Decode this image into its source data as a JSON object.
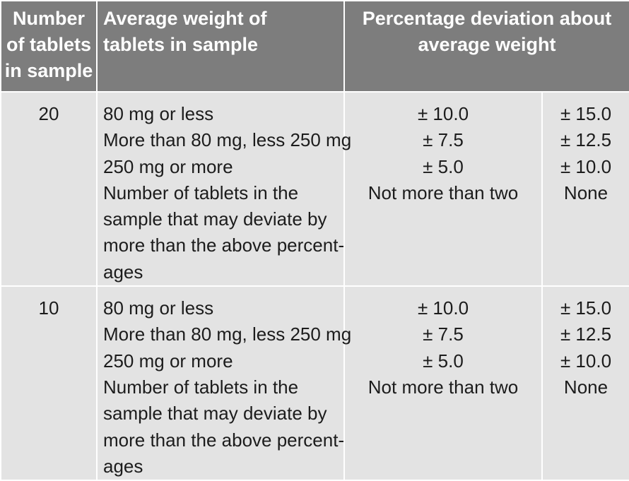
{
  "header": {
    "col1": [
      "Number",
      "of tablets",
      "in sample"
    ],
    "col2": [
      "Average weight of",
      "tablets in sample"
    ],
    "col3": [
      "Percentage deviation about",
      "average weight"
    ]
  },
  "rows": [
    {
      "n": "20",
      "desc": [
        "80 mg or less",
        "More than 80 mg, less 250 mg",
        "250 mg or more",
        "Number of tablets in the",
        "sample that may deviate by",
        "more than the above percent-",
        "ages"
      ],
      "dev1": [
        "± 10.0",
        "± 7.5",
        "± 5.0",
        "Not more than two"
      ],
      "dev2": [
        "± 15.0",
        "± 12.5",
        "± 10.0",
        "None"
      ]
    },
    {
      "n": "10",
      "desc": [
        "80 mg or less",
        "More than 80 mg, less 250 mg",
        "250 mg or more",
        "Number of tablets in the",
        "sample that may deviate by",
        "more than the above percent-",
        "ages"
      ],
      "dev1": [
        "± 10.0",
        "± 7.5",
        "± 5.0",
        "Not more than two"
      ],
      "dev2": [
        "± 15.0",
        "± 12.5",
        "± 10.0",
        "None"
      ]
    }
  ]
}
